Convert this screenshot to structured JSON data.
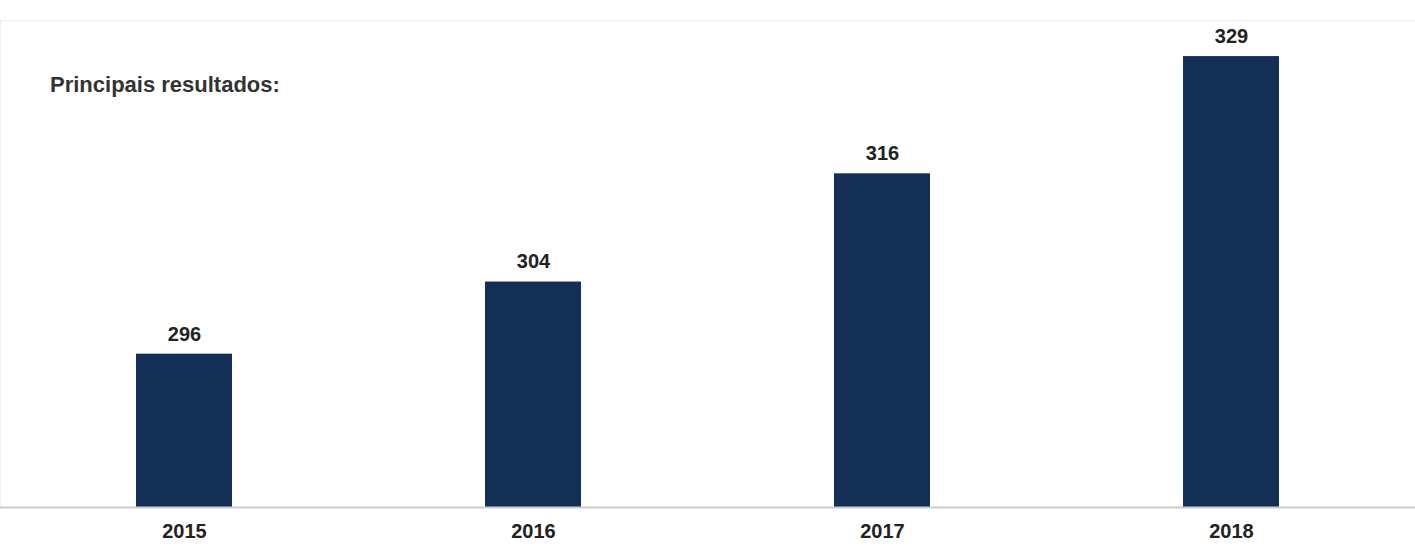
{
  "chart_data": {
    "type": "bar",
    "title": "Principais resultados:",
    "categories": [
      "2015",
      "2016",
      "2017",
      "2018"
    ],
    "values": [
      296,
      304,
      316,
      329
    ],
    "color": "#142f55",
    "ylim": [
      279,
      333
    ],
    "yticks": [],
    "grid": false,
    "data_labels": true,
    "tick_labels": "x"
  }
}
